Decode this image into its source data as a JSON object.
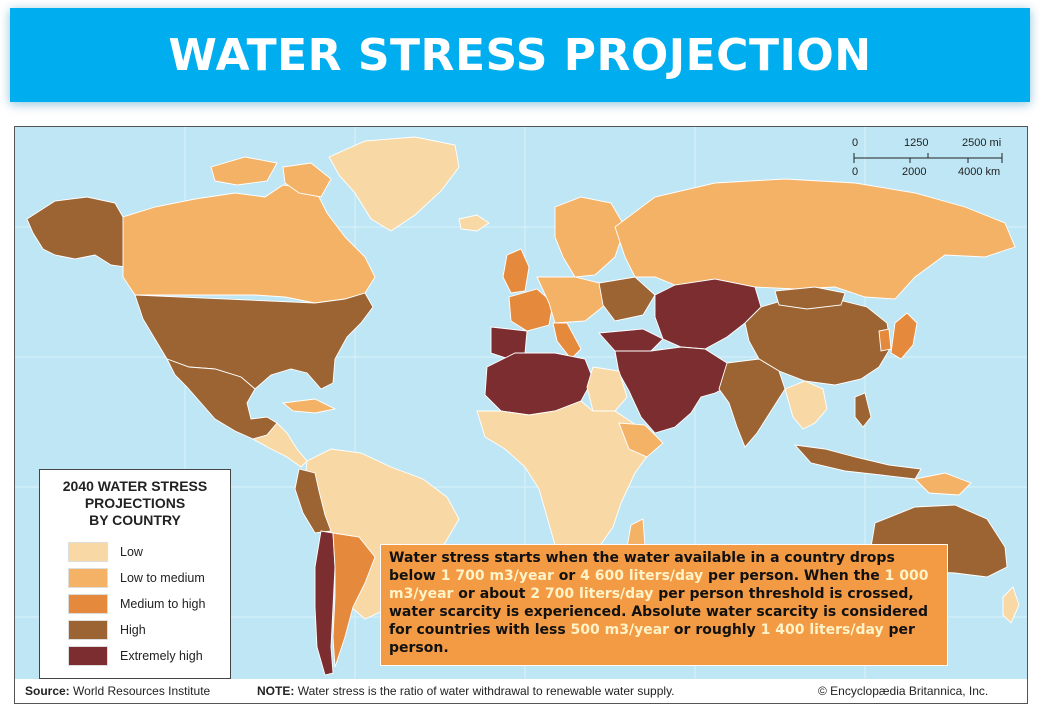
{
  "title": "WATER STRESS PROJECTION",
  "legend": {
    "title_lines": [
      "2040 WATER STRESS",
      "PROJECTIONS",
      "BY COUNTRY"
    ],
    "items": [
      {
        "label": "Low",
        "color": "#f8d9a6"
      },
      {
        "label": "Low to medium",
        "color": "#f4b266"
      },
      {
        "label": "Medium to high",
        "color": "#e58a3c"
      },
      {
        "label": "High",
        "color": "#9c6432"
      },
      {
        "label": "Extremely high",
        "color": "#7b2d30"
      }
    ]
  },
  "scale_bar": {
    "miles_ticks": [
      "0",
      "1250",
      "2500 mi"
    ],
    "km_ticks": [
      "0",
      "2000",
      "4000 km"
    ]
  },
  "footer": {
    "source_label": "Source:",
    "source_value": "World Resources Institute",
    "note_label": "NOTE:",
    "note_value": "Water stress is the ratio of water withdrawal to renewable water supply.",
    "copyright": "© Encyclopædia Britannica, Inc."
  },
  "note_box": {
    "p1": "Water stress starts when the water available in a country drops below ",
    "h1": "1 700 m3/year",
    "p2": " or ",
    "h2": "4 600 liters/day",
    "p3": " per person. When the ",
    "h3": "1 000 m3/year",
    "p4": " or about ",
    "h4": "2 700 liters/day",
    "p5": " per person threshold is crossed, water scarcity is experienced. Absolute water scarcity is considered for countries with less ",
    "h5": "500 m3/year",
    "p6": " or roughly ",
    "h6": "1 400 liters/day",
    "p7": " per person."
  },
  "colors": {
    "banner": "#00aeef",
    "ocean": "#bfe6f5",
    "note_box": "#f29a44",
    "highlight_text": "#fff3c7"
  }
}
